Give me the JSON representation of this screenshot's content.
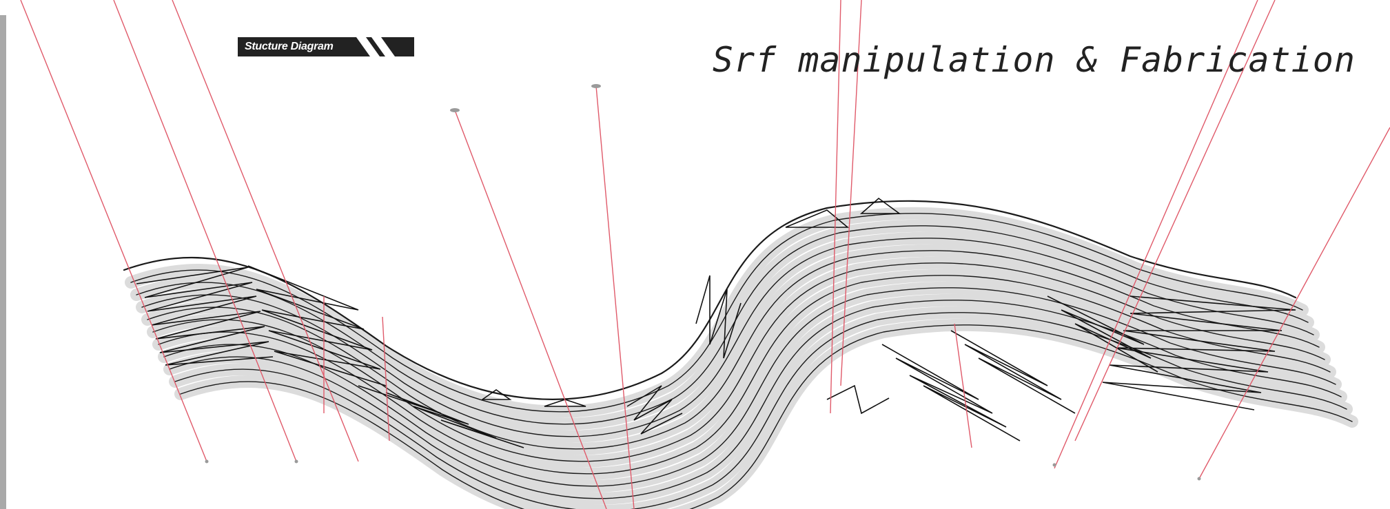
{
  "header": {
    "badge_label": "Stucture Diagram",
    "title": "Srf manipulation & Fabrication"
  },
  "colors": {
    "strip": "#a9a9a9",
    "badge_bg": "#222222",
    "ribbon_fill": "#dcdcdc",
    "truss_line": "#111111",
    "cable_line": "#e05a6a"
  }
}
